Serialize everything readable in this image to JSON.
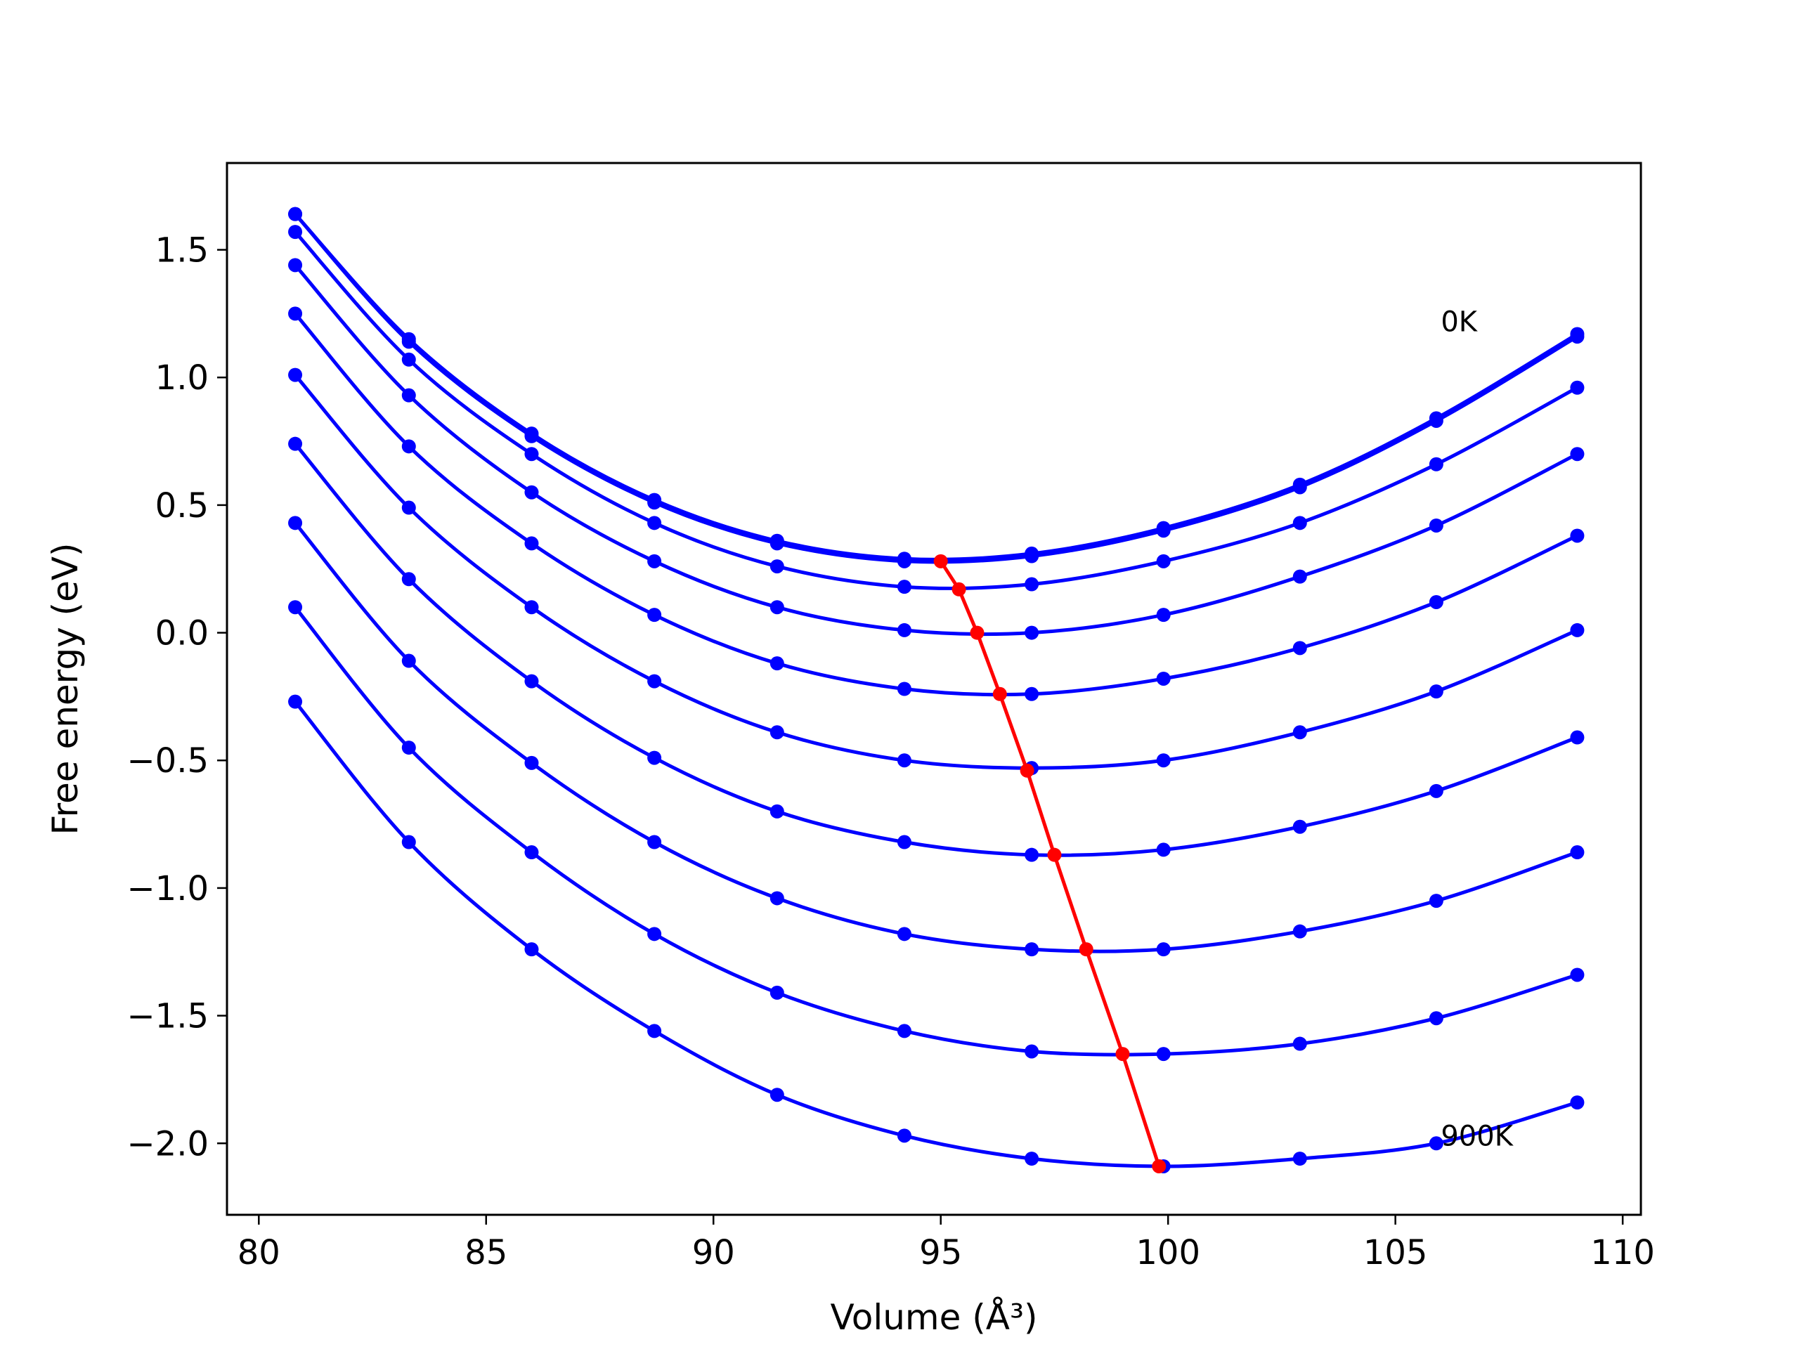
{
  "chart_data": {
    "type": "line",
    "title": "",
    "xlabel": "Volume (Å³)",
    "ylabel": "Free energy (eV)",
    "xlim": [
      79.3,
      110.4
    ],
    "ylim": [
      -2.28,
      1.84
    ],
    "xticks": [
      80,
      85,
      90,
      95,
      100,
      105,
      110
    ],
    "yticks": [
      -2.0,
      -1.5,
      -1.0,
      -0.5,
      0.0,
      0.5,
      1.0,
      1.5
    ],
    "xtick_labels": [
      "80",
      "85",
      "90",
      "95",
      "100",
      "105",
      "110"
    ],
    "ytick_labels": [
      "−2.0",
      "−1.5",
      "−1.0",
      "−0.5",
      "0.0",
      "0.5",
      "1.0",
      "1.5"
    ],
    "grid": false,
    "colors": {
      "curves": "#0000ff",
      "minimum_line": "#ff0000"
    },
    "x": [
      80.8,
      83.3,
      86.0,
      88.7,
      91.4,
      94.2,
      97.0,
      99.9,
      102.9,
      105.9,
      109.0
    ],
    "series": [
      {
        "values": [
          1.64,
          1.15,
          0.78,
          0.52,
          0.36,
          0.29,
          0.31,
          0.41,
          0.58,
          0.84,
          1.17
        ]
      },
      {
        "values": [
          1.64,
          1.14,
          0.77,
          0.51,
          0.35,
          0.28,
          0.3,
          0.4,
          0.57,
          0.83,
          1.16
        ]
      },
      {
        "values": [
          1.57,
          1.07,
          0.7,
          0.43,
          0.26,
          0.18,
          0.19,
          0.28,
          0.43,
          0.66,
          0.96
        ]
      },
      {
        "values": [
          1.44,
          0.93,
          0.55,
          0.28,
          0.1,
          0.01,
          0.0,
          0.07,
          0.22,
          0.42,
          0.7
        ]
      },
      {
        "values": [
          1.25,
          0.73,
          0.35,
          0.07,
          -0.12,
          -0.22,
          -0.24,
          -0.18,
          -0.06,
          0.12,
          0.38
        ]
      },
      {
        "values": [
          1.01,
          0.49,
          0.1,
          -0.19,
          -0.39,
          -0.5,
          -0.53,
          -0.5,
          -0.39,
          -0.23,
          0.01
        ]
      },
      {
        "values": [
          0.74,
          0.21,
          -0.19,
          -0.49,
          -0.7,
          -0.82,
          -0.87,
          -0.85,
          -0.76,
          -0.62,
          -0.41
        ]
      },
      {
        "values": [
          0.43,
          -0.11,
          -0.51,
          -0.82,
          -1.04,
          -1.18,
          -1.24,
          -1.24,
          -1.17,
          -1.05,
          -0.86
        ]
      },
      {
        "values": [
          0.1,
          -0.45,
          -0.86,
          -1.18,
          -1.41,
          -1.56,
          -1.64,
          -1.65,
          -1.61,
          -1.51,
          -1.34
        ]
      },
      {
        "values": [
          -0.27,
          -0.82,
          -1.24,
          -1.56,
          -1.81,
          -1.97,
          -2.06,
          -2.09,
          -2.06,
          -2.0,
          -1.84
        ]
      }
    ],
    "minimum_line": {
      "x": [
        95.0,
        95.4,
        95.8,
        96.3,
        96.9,
        97.5,
        98.2,
        99.0,
        99.8
      ],
      "y": [
        0.28,
        0.17,
        0.0,
        -0.24,
        -0.54,
        -0.87,
        -1.24,
        -1.65,
        -2.09
      ]
    },
    "annotations": [
      {
        "text": "0K",
        "x": 106.0,
        "y": 1.22
      },
      {
        "text": "900K",
        "x": 106.0,
        "y": -1.97
      }
    ]
  }
}
